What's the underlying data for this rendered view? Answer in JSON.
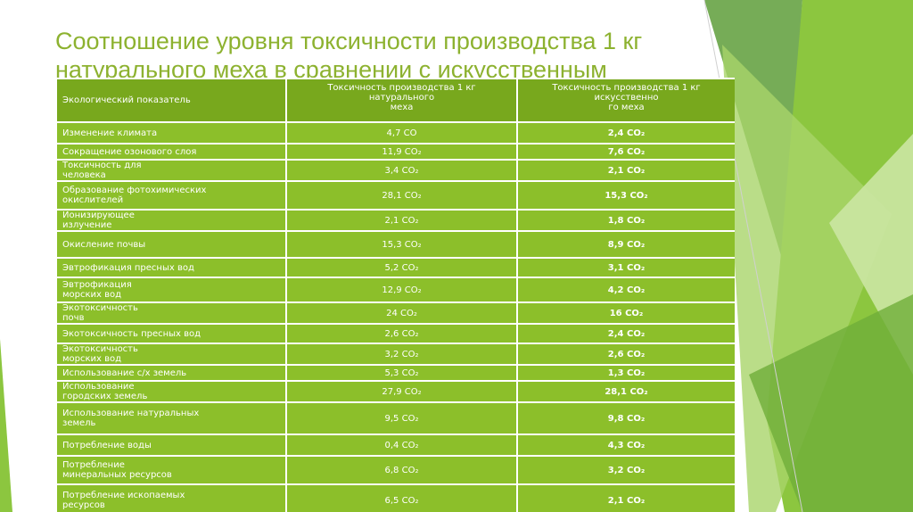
{
  "title": "Соотношение уровня токсичности производства 1 кг натурального меха в сравнении с искусственным",
  "table": {
    "headers": [
      "Экологический показатель",
      "Токсичность производства 1 кг\nнатурального\nмеха",
      "Токсичность производства 1 кг\nискусственно\nго меха"
    ],
    "rows": [
      {
        "indicator": "Изменение климата",
        "natural": "4,7 CO",
        "artificial": "2,4 CO₂"
      },
      {
        "indicator": "Сокращение озонового слоя",
        "natural": "11,9 CO₂",
        "artificial": "7,6 CO₂"
      },
      {
        "indicator": "Токсичность         для\nчеловека",
        "natural": "3,4 CO₂",
        "artificial": "2,1 CO₂"
      },
      {
        "indicator": "Образование фотохимических\nокислителей",
        "natural": "28,1 CO₂",
        "artificial": "15,3 CO₂"
      },
      {
        "indicator": "Ионизирующее\nизлучение",
        "natural": "2,1 CO₂",
        "artificial": "1,8 CO₂"
      },
      {
        "indicator": "Окисление почвы",
        "natural": "15,3 CO₂",
        "artificial": "8,9 CO₂"
      },
      {
        "indicator": "Эвтрофикация пресных вод",
        "natural": "5,2 CO₂",
        "artificial": "3,1 CO₂"
      },
      {
        "indicator": "Эвтрофикация\nморских вод",
        "natural": "12,9 CO₂",
        "artificial": "4,2 CO₂"
      },
      {
        "indicator": "Экотоксичность\nпочв",
        "natural": "24 CO₂",
        "artificial": "16 CO₂"
      },
      {
        "indicator": "Экотоксичность пресных вод",
        "natural": "2,6 CO₂",
        "artificial": "2,4 CO₂"
      },
      {
        "indicator": "Экотоксичность\nморских вод",
        "natural": "3,2 CO₂",
        "artificial": "2,6 CO₂"
      },
      {
        "indicator": "Использование с/х земель",
        "natural": "5,3 CO₂",
        "artificial": "1,3 CO₂"
      },
      {
        "indicator": "Использование\nгородских земель",
        "natural": "27,9 CO₂",
        "artificial": "28,1 CO₂"
      },
      {
        "indicator": "Использование натуральных\nземель",
        "natural": "9,5 CO₂",
        "artificial": "9,8 CO₂"
      },
      {
        "indicator": "Потребление воды",
        "natural": "0,4 CO₂",
        "artificial": "4,3 CO₂"
      },
      {
        "indicator": "Потребление\nминеральных ресурсов",
        "natural": "6,8 CO₂",
        "artificial": "3,2 CO₂"
      },
      {
        "indicator": "Потребление ископаемых\nресурсов",
        "natural": "6,5 CO₂",
        "artificial": "2,1 CO₂"
      }
    ]
  }
}
